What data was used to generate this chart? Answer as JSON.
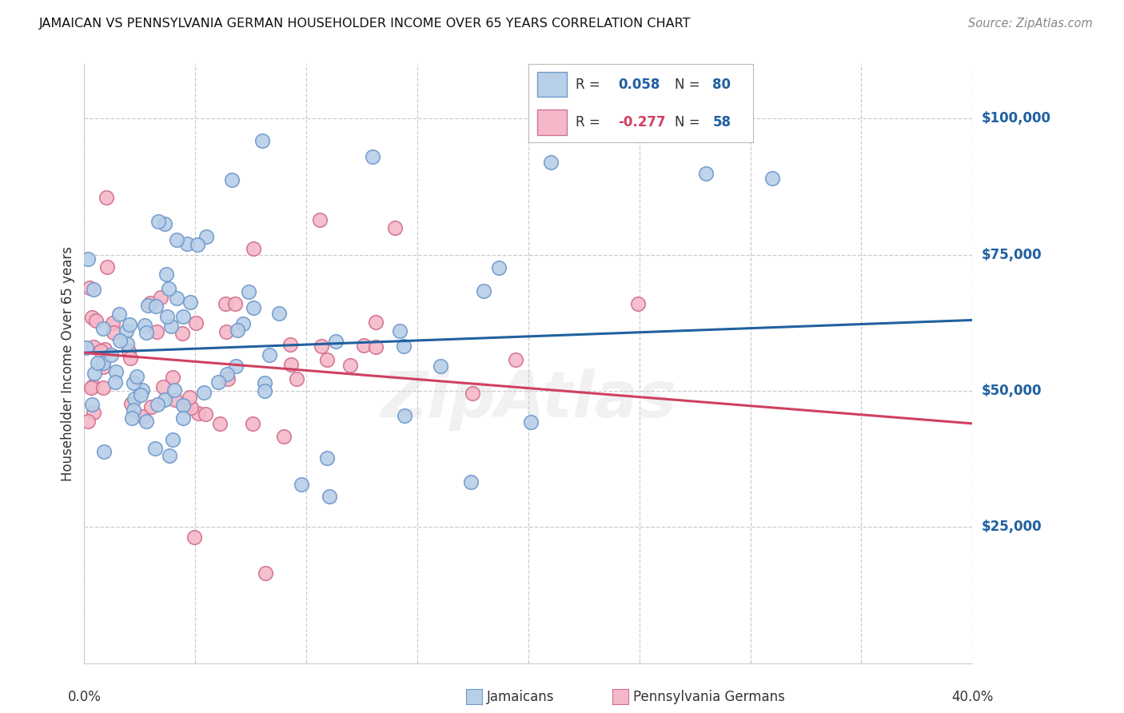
{
  "title": "JAMAICAN VS PENNSYLVANIA GERMAN HOUSEHOLDER INCOME OVER 65 YEARS CORRELATION CHART",
  "source": "Source: ZipAtlas.com",
  "ylabel": "Householder Income Over 65 years",
  "yaxis_labels": [
    "$25,000",
    "$50,000",
    "$75,000",
    "$100,000"
  ],
  "yaxis_values": [
    25000,
    50000,
    75000,
    100000
  ],
  "blue_line_color": "#2060a0",
  "pink_line_color": "#d04060",
  "blue_scatter_face": "#b8cfe8",
  "blue_scatter_edge": "#7099cc",
  "pink_scatter_face": "#f5b8c8",
  "pink_scatter_edge": "#d07090",
  "blue_R": 0.058,
  "blue_N": 80,
  "pink_R": -0.277,
  "pink_N": 58,
  "xmin": 0.0,
  "xmax": 0.4,
  "ymin": 0,
  "ymax": 110000,
  "legend_R_color": "#2060a0",
  "legend_N_color": "#2060a0",
  "legend_pink_R_color": "#d04060",
  "legend_pink_N_color": "#2060a0"
}
